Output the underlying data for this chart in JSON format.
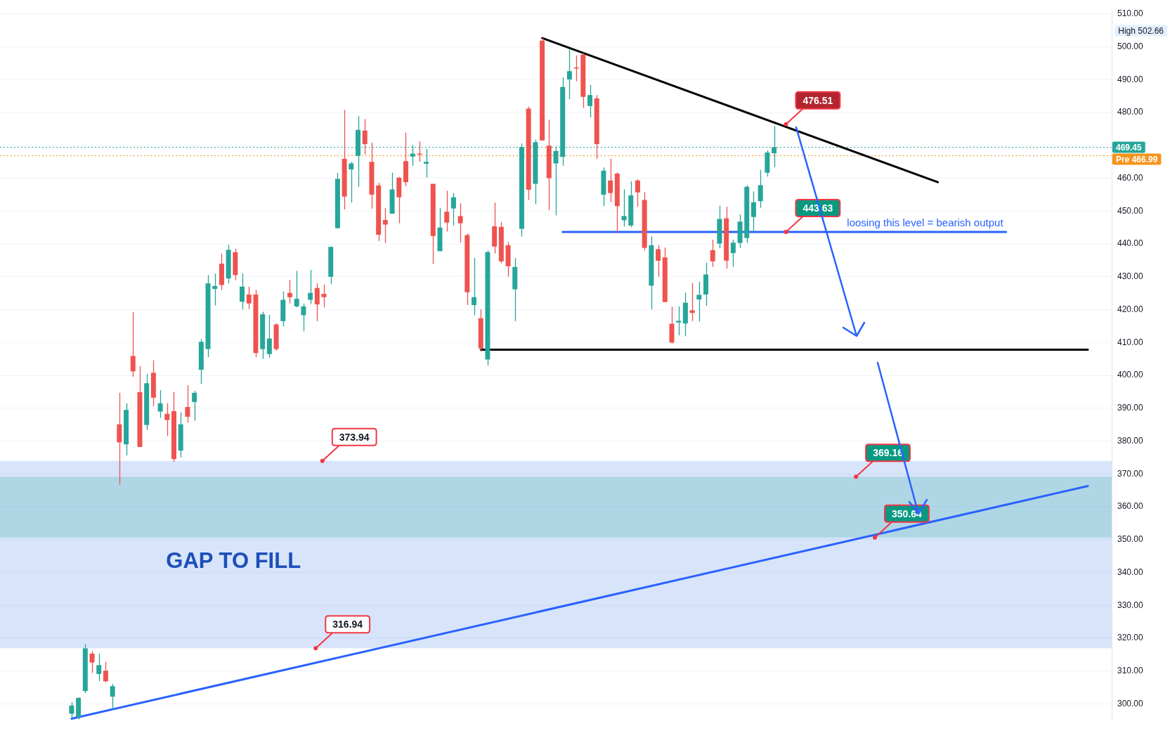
{
  "chart_data": {
    "type": "candlestick",
    "categories": [
      null,
      null,
      null,
      null,
      null,
      null,
      null,
      null,
      null,
      null,
      null,
      null,
      null,
      null,
      null,
      null,
      null,
      null,
      null,
      null,
      null,
      null,
      null,
      null,
      null,
      null,
      null,
      null,
      null,
      null,
      null,
      null,
      null,
      null,
      null,
      null,
      null,
      null,
      null,
      null,
      null,
      null,
      null,
      null,
      null,
      null,
      null,
      null,
      null,
      null,
      null,
      null,
      null,
      null,
      null,
      null,
      null,
      null,
      null,
      null,
      null,
      null,
      null,
      null,
      null,
      null,
      null,
      null,
      null,
      null,
      null,
      null,
      null,
      null,
      null,
      null,
      null,
      null,
      null,
      null,
      null,
      null,
      null,
      null,
      null,
      null,
      null,
      null,
      null,
      null,
      null,
      null,
      null,
      null,
      null,
      null,
      null,
      null,
      null,
      null,
      null,
      null,
      null,
      null,
      null,
      null,
      null,
      null,
      null,
      null,
      null,
      null,
      null,
      null,
      null,
      null,
      null,
      null,
      null,
      null,
      null,
      null,
      null,
      null,
      null,
      null,
      null,
      null,
      null,
      null,
      null,
      null,
      null,
      null,
      null,
      null,
      null,
      null,
      null,
      null,
      null,
      null,
      null,
      null,
      null,
      null,
      null,
      null,
      null,
      null,
      null,
      null,
      null,
      null,
      null,
      null,
      null,
      null,
      null,
      null,
      null,
      null,
      null
    ],
    "ohlc": [
      null,
      null,
      null,
      null,
      null,
      null,
      null,
      null,
      null,
      null,
      [
        297,
        300.5,
        295.5,
        299.5
      ],
      [
        295.9,
        302.0,
        295.3,
        301.8
      ],
      [
        303.9,
        318.1,
        303.3,
        316.9
      ],
      [
        315.3,
        316.0,
        309.4,
        312.6
      ],
      [
        309.1,
        315.3,
        306.9,
        311.8
      ],
      [
        310.1,
        312.8,
        306.5,
        306.9
      ],
      [
        302.2,
        306.1,
        298.2,
        305.4
      ],
      [
        385.1,
        394.7,
        366.7,
        379.6
      ],
      [
        379.0,
        391.5,
        375.6,
        389.5
      ],
      [
        405.9,
        419.2,
        399.6,
        401.2
      ],
      [
        394.9,
        402.8,
        378.2,
        378.2
      ],
      [
        384.9,
        400.4,
        383.4,
        397.6
      ],
      [
        400.8,
        404.6,
        390.6,
        393.2
      ],
      [
        389.0,
        395.5,
        387.1,
        391.5
      ],
      [
        388.3,
        391.5,
        381.5,
        386.4
      ],
      [
        389.1,
        394.9,
        373.7,
        374.5
      ],
      [
        377.1,
        388.7,
        375.0,
        385.1
      ],
      [
        390.4,
        397.0,
        385.6,
        387.4
      ],
      [
        391.9,
        395.3,
        386.2,
        394.7
      ],
      [
        401.7,
        411.0,
        397.4,
        410.2
      ],
      [
        408.0,
        430.5,
        405.5,
        428.0
      ],
      [
        426.3,
        431.0,
        421.3,
        427.2
      ],
      [
        434.0,
        437.0,
        426.0,
        427.5
      ],
      [
        429.5,
        439.8,
        428.0,
        438.2
      ],
      [
        437.5,
        438.5,
        429.0,
        430.5
      ],
      [
        422.4,
        431.0,
        420.0,
        427.0
      ],
      [
        424.6,
        427.0,
        420.2,
        421.9
      ],
      [
        424.6,
        426.0,
        405.5,
        406.8
      ],
      [
        408.0,
        419.4,
        405.0,
        418.6
      ],
      [
        406.5,
        418.4,
        405.4,
        411.2
      ],
      [
        415.5,
        415.8,
        407.5,
        408.0
      ],
      [
        416.5,
        425.5,
        414.9,
        423.0
      ],
      [
        425.1,
        429.0,
        421.9,
        423.8
      ],
      [
        421.0,
        431.8,
        420.7,
        423.3
      ],
      [
        418.3,
        421.9,
        413.4,
        421.0
      ],
      [
        423.0,
        432.1,
        421.7,
        425.1
      ],
      [
        426.6,
        428.0,
        416.5,
        421.6
      ],
      [
        424.8,
        427.6,
        420.7,
        423.8
      ],
      [
        430.0,
        439.2,
        427.8,
        439.1
      ],
      [
        444.8,
        461.6,
        444.8,
        459.8
      ],
      [
        465.9,
        480.8,
        450.5,
        454.4
      ],
      [
        462.7,
        465.0,
        452.6,
        464.5
      ],
      [
        466.8,
        478.9,
        457.4,
        474.7
      ],
      [
        474.5,
        478.0,
        467.3,
        470.4
      ],
      [
        465.0,
        470.8,
        450.7,
        455.0
      ],
      [
        457.8,
        458.6,
        440.9,
        442.8
      ],
      [
        447.3,
        451.0,
        440.3,
        445.9
      ],
      [
        449.2,
        461.7,
        449.2,
        456.6
      ],
      [
        460.2,
        460.4,
        446.3,
        454.2
      ],
      [
        465.2,
        473.9,
        457.6,
        458.8
      ],
      [
        466.6,
        470.1,
        463.8,
        467.5
      ],
      [
        467.5,
        471.2,
        465.0,
        467.2
      ],
      [
        464.4,
        468.9,
        460.2,
        465.0
      ],
      [
        458.3,
        458.3,
        433.9,
        442.4
      ],
      [
        437.8,
        451.0,
        437.8,
        445.0
      ],
      [
        449.8,
        456.2,
        443.8,
        446.5
      ],
      [
        450.8,
        455.5,
        445.6,
        454.2
      ],
      [
        448.5,
        452.4,
        440.4,
        446.3
      ],
      [
        442.7,
        443.2,
        421.4,
        425.3
      ],
      [
        421.4,
        435.7,
        418.3,
        423.8
      ],
      [
        417.4,
        420.1,
        407.2,
        408.2
      ],
      [
        404.8,
        438.0,
        403.0,
        437.5
      ],
      [
        445.4,
        452.6,
        437.1,
        439.2
      ],
      [
        445.2,
        446.7,
        434.1,
        434.7
      ],
      [
        439.6,
        440.6,
        430.0,
        433.2
      ],
      [
        426.2,
        435.7,
        416.5,
        433.0
      ],
      [
        444.6,
        470.6,
        442.2,
        469.5
      ],
      [
        481.2,
        481.8,
        453.4,
        456.5
      ],
      [
        458.3,
        471.8,
        452.1,
        471.0
      ],
      [
        501.9,
        502.66,
        471.5,
        471.5
      ],
      [
        469.9,
        477.8,
        450.3,
        460.0
      ],
      [
        464.5,
        469.7,
        448.7,
        468.3
      ],
      [
        466.5,
        490.7,
        463.8,
        487.8
      ],
      [
        490.1,
        499.2,
        484.1,
        492.6
      ],
      [
        493.7,
        497.4,
        489.5,
        493.4
      ],
      [
        497.6,
        498.1,
        481.4,
        484.8
      ],
      [
        482.0,
        488.4,
        478.5,
        485.3
      ],
      [
        484.3,
        485.3,
        465.9,
        470.4
      ],
      [
        455.0,
        463.3,
        451.5,
        462.3
      ],
      [
        459.3,
        466.0,
        452.7,
        455.5
      ],
      [
        461.4,
        461.8,
        443.2,
        451.5
      ],
      [
        447.2,
        456.6,
        445.3,
        448.5
      ],
      [
        445.6,
        459.1,
        445.1,
        454.8
      ],
      [
        459.3,
        459.7,
        451.3,
        455.7
      ],
      [
        453.4,
        455.8,
        438.0,
        438.8
      ],
      [
        427.3,
        442.3,
        420.0,
        439.6
      ],
      [
        438.4,
        439.6,
        430.0,
        434.9
      ],
      [
        435.9,
        438.9,
        422.3,
        422.3
      ],
      [
        415.7,
        420.9,
        409.7,
        410.0
      ],
      [
        416.1,
        421.0,
        412.2,
        416.6
      ],
      [
        415.8,
        425.2,
        411.9,
        422.1
      ],
      [
        419.8,
        428.1,
        416.5,
        419.0
      ],
      [
        423.1,
        428.5,
        416.4,
        424.5
      ],
      [
        424.6,
        434.3,
        421.2,
        430.7
      ],
      [
        438.1,
        441.3,
        433.0,
        434.7
      ],
      [
        440.1,
        451.6,
        438.7,
        447.6
      ],
      [
        447.8,
        451.3,
        432.5,
        434.9
      ],
      [
        437.2,
        441.3,
        433.0,
        440.4
      ],
      [
        440.3,
        449.0,
        438.8,
        446.8
      ],
      [
        441.8,
        457.9,
        440.3,
        457.4
      ],
      [
        448.2,
        456.0,
        443.6,
        452.7
      ],
      [
        453.0,
        462.5,
        451.0,
        457.9
      ],
      [
        461.7,
        468.5,
        460.5,
        467.8
      ],
      [
        467.6,
        475.9,
        463.4,
        469.45
      ],
      null,
      null,
      null,
      null,
      null,
      null,
      null,
      null,
      null,
      null,
      null,
      null,
      null,
      null,
      null,
      null,
      null,
      null,
      null,
      null,
      null,
      null,
      null,
      null,
      null,
      null,
      null,
      null,
      null,
      null,
      null,
      null,
      null,
      null,
      null,
      null,
      null,
      null,
      null,
      null,
      null,
      null,
      null,
      null,
      null,
      null,
      null,
      null,
      null
    ],
    "series": [
      {
        "type": "line",
        "color": "#000000",
        "values": [
          null,
          null,
          null,
          null,
          null,
          null,
          null,
          null,
          null,
          null,
          null,
          null,
          null,
          null,
          null,
          null,
          null,
          null,
          null,
          null,
          null,
          null,
          null,
          null,
          null,
          null,
          null,
          null,
          null,
          null,
          null,
          null,
          null,
          null,
          null,
          null,
          null,
          null,
          null,
          null,
          null,
          null,
          null,
          null,
          null,
          null,
          null,
          null,
          null,
          null,
          null,
          null,
          null,
          null,
          null,
          null,
          null,
          null,
          null,
          null,
          null,
          null,
          null,
          null,
          null,
          null,
          null,
          null,
          null,
          null,
          null,
          null,
          null,
          null,
          null,
          null,
          null,
          null,
          null,
          502.66,
          null,
          null,
          null,
          null,
          null,
          null,
          null,
          null,
          null,
          null,
          null,
          null,
          null,
          null,
          null,
          null,
          null,
          null,
          null,
          null,
          null,
          null,
          null,
          null,
          null,
          null,
          null,
          null,
          null,
          null,
          null,
          null,
          null,
          null,
          null,
          null,
          null,
          null,
          null,
          null,
          null,
          null,
          null,
          null,
          null,
          null,
          null,
          null,
          null,
          null,
          null,
          null,
          null,
          null,
          null,
          null,
          null,
          458.8,
          null,
          null,
          null,
          null,
          null,
          null,
          null,
          null,
          null,
          null,
          null,
          null,
          null,
          null,
          null,
          null,
          null,
          null,
          null,
          null,
          null,
          null,
          null,
          null,
          null
        ]
      },
      {
        "type": "line",
        "color": "#000000",
        "values": [
          null,
          null,
          null,
          null,
          null,
          null,
          null,
          null,
          null,
          null,
          null,
          null,
          null,
          null,
          null,
          null,
          null,
          null,
          null,
          null,
          null,
          null,
          null,
          null,
          null,
          null,
          null,
          null,
          null,
          null,
          null,
          null,
          null,
          null,
          null,
          null,
          null,
          null,
          null,
          null,
          null,
          null,
          null,
          null,
          null,
          null,
          null,
          null,
          null,
          null,
          null,
          null,
          null,
          null,
          null,
          null,
          null,
          null,
          null,
          null,
          null,
          null,
          null,
          null,
          null,
          null,
          null,
          null,
          null,
          null,
          407.8,
          null,
          null,
          null,
          null,
          null,
          null,
          null,
          null,
          null,
          null,
          null,
          null,
          null,
          null,
          null,
          null,
          null,
          null,
          null,
          null,
          null,
          null,
          null,
          null,
          null,
          null,
          null,
          null,
          null,
          null,
          null,
          null,
          null,
          null,
          null,
          null,
          null,
          null,
          null,
          null,
          null,
          null,
          null,
          null,
          null,
          null,
          null,
          null,
          null,
          null,
          null,
          null,
          null,
          null,
          null,
          null,
          null,
          null,
          null,
          null,
          null,
          null,
          null,
          null,
          null,
          null,
          null,
          null,
          null,
          null,
          null,
          null,
          null,
          null,
          null,
          null,
          null,
          null,
          null,
          null,
          null,
          null,
          null,
          null,
          null,
          null,
          null,
          null,
          407.8,
          null,
          null,
          null
        ]
      },
      {
        "type": "line",
        "name": "loosing this level = bearish output",
        "color": "#2962ff",
        "values": [
          null,
          null,
          null,
          null,
          null,
          null,
          null,
          null,
          null,
          null,
          null,
          null,
          null,
          null,
          null,
          null,
          null,
          null,
          null,
          null,
          null,
          null,
          null,
          null,
          null,
          null,
          null,
          null,
          null,
          null,
          null,
          null,
          null,
          null,
          null,
          null,
          null,
          null,
          null,
          null,
          null,
          null,
          null,
          null,
          null,
          null,
          null,
          null,
          null,
          null,
          null,
          null,
          null,
          null,
          null,
          null,
          null,
          null,
          null,
          null,
          null,
          null,
          null,
          null,
          null,
          null,
          null,
          null,
          null,
          null,
          null,
          null,
          null,
          null,
          null,
          null,
          null,
          null,
          null,
          null,
          null,
          null,
          443.63,
          null,
          null,
          null,
          null,
          null,
          null,
          null,
          null,
          null,
          null,
          null,
          null,
          null,
          null,
          null,
          null,
          null,
          null,
          null,
          null,
          null,
          null,
          null,
          null,
          null,
          null,
          null,
          null,
          null,
          null,
          null,
          null,
          null,
          null,
          null,
          null,
          null,
          null,
          null,
          null,
          null,
          null,
          null,
          null,
          null,
          null,
          null,
          null,
          null,
          null,
          null,
          null,
          null,
          null,
          null,
          null,
          null,
          null,
          null,
          null,
          null,
          null,
          null,
          null,
          443.63,
          null,
          null,
          null,
          null,
          null,
          null,
          null,
          null,
          null,
          null,
          null,
          null,
          null,
          null,
          null
        ]
      },
      {
        "type": "line",
        "color": "#2962ff",
        "values": [
          null,
          null,
          null,
          null,
          null,
          null,
          null,
          null,
          null,
          null,
          295.5,
          null,
          null,
          null,
          null,
          null,
          null,
          null,
          null,
          null,
          null,
          null,
          null,
          null,
          null,
          null,
          null,
          null,
          null,
          null,
          null,
          null,
          null,
          null,
          null,
          null,
          null,
          null,
          null,
          null,
          null,
          null,
          null,
          null,
          null,
          null,
          null,
          null,
          null,
          null,
          null,
          null,
          null,
          null,
          null,
          null,
          null,
          null,
          null,
          null,
          null,
          null,
          null,
          null,
          null,
          null,
          null,
          null,
          null,
          null,
          null,
          null,
          null,
          null,
          null,
          null,
          null,
          null,
          null,
          null,
          null,
          null,
          null,
          null,
          null,
          null,
          null,
          null,
          null,
          null,
          null,
          null,
          null,
          null,
          null,
          null,
          null,
          null,
          null,
          null,
          null,
          null,
          null,
          null,
          null,
          null,
          null,
          null,
          null,
          null,
          null,
          null,
          null,
          null,
          null,
          null,
          null,
          null,
          null,
          null,
          null,
          null,
          null,
          null,
          null,
          null,
          null,
          null,
          null,
          null,
          null,
          null,
          null,
          null,
          null,
          null,
          null,
          null,
          null,
          null,
          null,
          null,
          null,
          null,
          null,
          null,
          null,
          null,
          null,
          null,
          null,
          null,
          null,
          null,
          null,
          null,
          null,
          null,
          null,
          366.3,
          null,
          null,
          null
        ]
      }
    ],
    "ylim": [
      295,
      511
    ],
    "yticks": [
      {
        "value": 300,
        "label": "300.00"
      },
      {
        "value": 310,
        "label": "310.00"
      },
      {
        "value": 320,
        "label": "320.00"
      },
      {
        "value": 330,
        "label": "330.00"
      },
      {
        "value": 340,
        "label": "340.00"
      },
      {
        "value": 350,
        "label": "350.00"
      },
      {
        "value": 360,
        "label": "360.00"
      },
      {
        "value": 370,
        "label": "370.00"
      },
      {
        "value": 380,
        "label": "380.00"
      },
      {
        "value": 390,
        "label": "390.00"
      },
      {
        "value": 400,
        "label": "400.00"
      },
      {
        "value": 410,
        "label": "410.00"
      },
      {
        "value": 420,
        "label": "420.00"
      },
      {
        "value": 430,
        "label": "430.00"
      },
      {
        "value": 440,
        "label": "440.00"
      },
      {
        "value": 450,
        "label": "450.00"
      },
      {
        "value": 460,
        "label": "460.00"
      },
      {
        "value": 470,
        "label": null
      },
      {
        "value": 480,
        "label": "480.00"
      },
      {
        "value": 490,
        "label": "490.00"
      },
      {
        "value": 500,
        "label": "500.00"
      },
      {
        "value": 510,
        "label": "510.00"
      }
    ],
    "bands": [
      {
        "axis": "y",
        "from": 316.94,
        "to": 373.94,
        "label": "GAP TO FILL",
        "color": "#4a84e6"
      },
      {
        "axis": "y",
        "from": 350.64,
        "to": 369.16,
        "color": "#26a69a"
      }
    ],
    "ref_lines": [
      {
        "axis": "y",
        "value": 469.45,
        "label": "469.45",
        "color": "#26a69a",
        "line_style": "dotted"
      },
      {
        "axis": "y",
        "value": 466.99,
        "label": "Pre 466.99",
        "color": "#f7931a",
        "line_style": "dotted"
      }
    ],
    "annotations": [
      "476.51",
      {
        "text": "443.63",
        "y": 443.63
      },
      {
        "text": "369.16",
        "y": 369.16
      },
      {
        "text": "350.64",
        "y": 350.64
      },
      {
        "text": "373.94",
        "y": 373.94
      },
      {
        "text": "316.94",
        "y": 316.94
      },
      "High 502.66"
    ],
    "grid": "y",
    "tick_labels": "y",
    "legend": false
  }
}
